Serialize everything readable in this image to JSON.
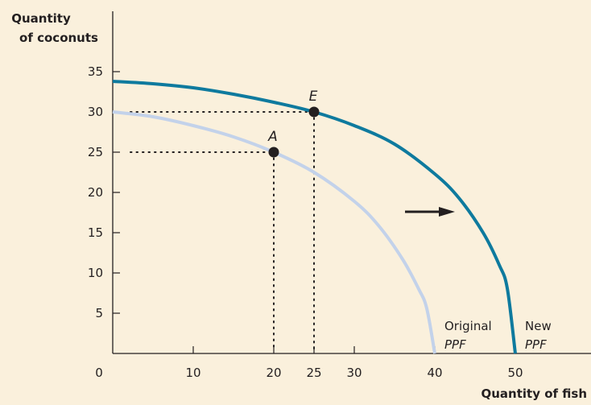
{
  "chart_data": {
    "type": "line",
    "xlabel": "Quantity of fish",
    "ylabel_lines": [
      "Quantity",
      "of coconuts"
    ],
    "xlim": [
      0,
      60
    ],
    "ylim": [
      0,
      40
    ],
    "x_ticks": [
      0,
      10,
      20,
      25,
      30,
      40,
      50
    ],
    "y_ticks": [
      5,
      10,
      15,
      20,
      25,
      30,
      35
    ],
    "grid": false,
    "series": [
      {
        "name": "Original PPF",
        "label_lines": [
          "Original",
          "PPF"
        ],
        "color": "#C3D2EA",
        "x": [
          0,
          5,
          10,
          15,
          20,
          25,
          30,
          33,
          36,
          38,
          39,
          40
        ],
        "y": [
          30,
          29.4,
          28.3,
          26.9,
          25,
          22.5,
          18.9,
          15.9,
          11.7,
          8.0,
          5.6,
          0
        ]
      },
      {
        "name": "New PPF",
        "label_lines": [
          "New",
          "PPF"
        ],
        "color": "#0E7A9E",
        "x": [
          0,
          5,
          10,
          15,
          20,
          25,
          30,
          35,
          40,
          43,
          46,
          48,
          49,
          50
        ],
        "y": [
          33.8,
          33.5,
          33.0,
          32.2,
          31.2,
          30,
          28.3,
          26.0,
          22.3,
          19.3,
          15.0,
          11.0,
          8.1,
          0
        ]
      }
    ],
    "points": [
      {
        "label": "A",
        "x": 20,
        "y": 25
      },
      {
        "label": "E",
        "x": 25,
        "y": 30
      }
    ],
    "arrow": {
      "from": [
        36.3,
        17.6
      ],
      "to": [
        42.5,
        17.6
      ],
      "direction": "right"
    }
  }
}
